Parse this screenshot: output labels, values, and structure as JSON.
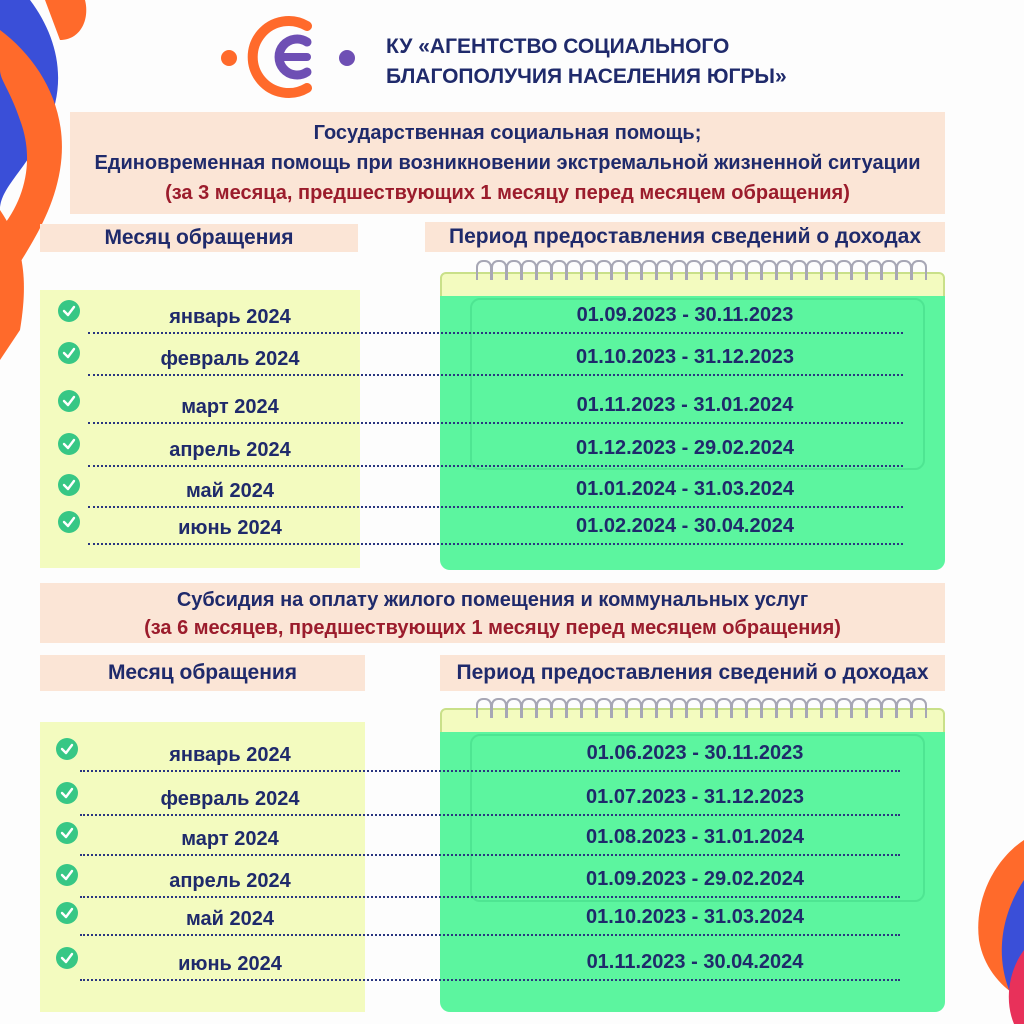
{
  "org": {
    "line1": "КУ «АГЕНТСТВО СОЦИАЛЬНОГО",
    "line2": "БЛАГОПОЛУЧИЯ НАСЕЛЕНИЯ ЮГРЫ»"
  },
  "section1": {
    "title_line1": "Государственная социальная помощь;",
    "title_line2": "Единовременная помощь при возникновении экстремальной жизненной ситуации",
    "subtitle": "(за 3 месяца, предшествующих 1 месяцу перед месяцем обращения)",
    "col_month": "Месяц обращения",
    "col_period": "Период предоставления сведений о доходах",
    "rows": [
      {
        "month": "январь 2024",
        "period": "01.09.2023 - 30.11.2023"
      },
      {
        "month": "февраль 2024",
        "period": "01.10.2023 - 31.12.2023"
      },
      {
        "month": "март 2024",
        "period": "01.11.2023 - 31.01.2024"
      },
      {
        "month": "апрель 2024",
        "period": "01.12.2023 - 29.02.2024"
      },
      {
        "month": "май 2024",
        "period": "01.01.2024 - 31.03.2024"
      },
      {
        "month": "июнь 2024",
        "period": "01.02.2024 - 30.04.2024"
      }
    ]
  },
  "section2": {
    "title_line1": "Субсидия на оплату жилого помещения и коммунальных услуг",
    "subtitle": "(за 6 месяцев, предшествующих 1 месяцу перед месяцем обращения)",
    "col_month": "Месяц обращения",
    "col_period": "Период предоставления сведений о доходах",
    "rows": [
      {
        "month": "январь 2024",
        "period": "01.06.2023 - 30.11.2023"
      },
      {
        "month": "февраль 2024",
        "period": "01.07.2023 - 31.12.2023"
      },
      {
        "month": "март 2024",
        "period": "01.08.2023 - 31.01.2024"
      },
      {
        "month": "апрель 2024",
        "period": "01.09.2023 - 29.02.2024"
      },
      {
        "month": "май 2024",
        "period": "01.10.2023 - 31.03.2024"
      },
      {
        "month": "июнь 2024",
        "period": "01.11.2023 - 30.04.2024"
      }
    ]
  },
  "colors": {
    "navy": "#1f2a6b",
    "red": "#9b1c2c",
    "orange": "#ff6a2b",
    "blue": "#3a4fd8",
    "purple": "#6e4fb4",
    "peach": "#fbe5d6",
    "yellow": "#f3fbbf",
    "green": "#5cf59f",
    "check": "#37c785"
  },
  "icons": [
    "logo-icon",
    "check-icon",
    "ribbon-decoration"
  ]
}
